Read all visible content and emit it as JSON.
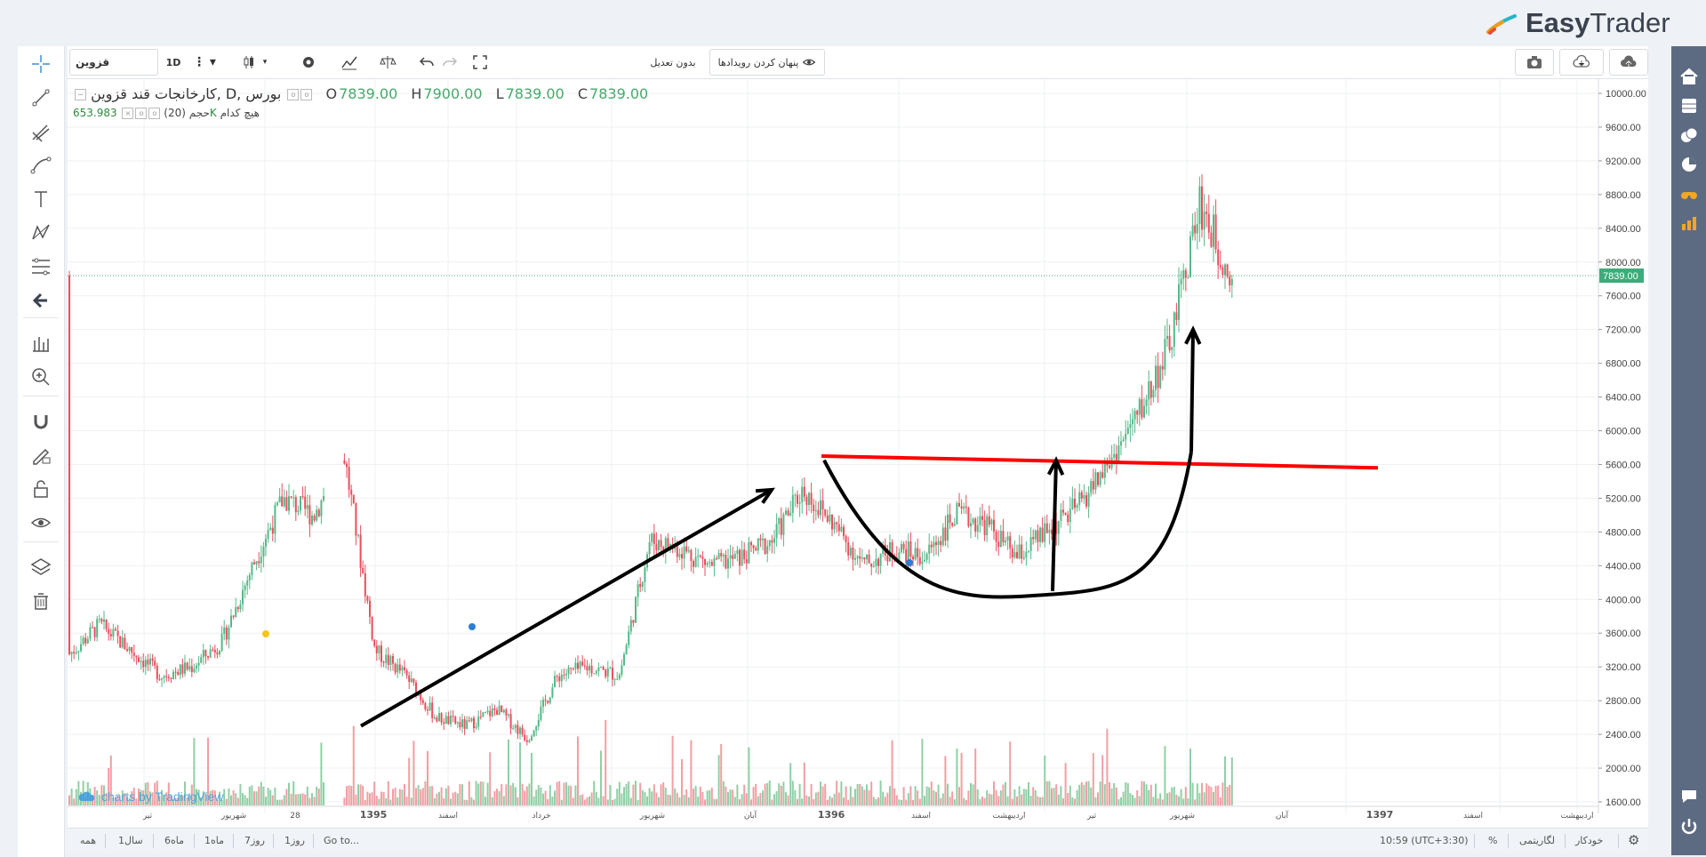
{
  "brand": {
    "name_bold": "Easy",
    "name_light": "Trader"
  },
  "toolbar": {
    "symbol": "قزوین",
    "interval": "1D",
    "adjust_label": "بدون تعدیل",
    "hide_events_label": "پنهان کردن رویدادها"
  },
  "legend": {
    "title": "کارخانجات قند قزوین, D, بورس",
    "open_label": "O",
    "open": "7839.00",
    "high_label": "H",
    "high": "7900.00",
    "low_label": "L",
    "low": "7839.00",
    "close_label": "C",
    "close": "7839.00",
    "volume_label": "حجم (20)",
    "volume_value": "653.983K",
    "volume_ma": "هیچ کدام"
  },
  "watermark": "charts by TradingView",
  "price_axis": {
    "labels": [
      "10000.00",
      "9600.00",
      "9200.00",
      "8800.00",
      "8400.00",
      "8000.00",
      "7600.00",
      "7200.00",
      "6800.00",
      "6400.00",
      "6000.00",
      "5600.00",
      "5200.00",
      "4800.00",
      "4400.00",
      "4000.00",
      "3600.00",
      "3200.00",
      "2800.00",
      "2400.00",
      "2000.00",
      "1600.00"
    ],
    "last_price": "7839.00"
  },
  "time_axis": {
    "labels": [
      "تیر",
      "شهریور",
      "28",
      "1395",
      "اسفند",
      "خرداد",
      "شهریور",
      "آبان",
      "1396",
      "اسفند",
      "اردیبهشت",
      "تیر",
      "شهریور",
      "آبان",
      "1397",
      "اسفند",
      "اردیبهشت"
    ]
  },
  "bottom_bar": {
    "ranges": [
      "همه",
      "1سال",
      "6ماه",
      "1ماه",
      "7روز",
      "1روز"
    ],
    "goto": "Go to...",
    "clock": "10:59 (UTC+3:30)",
    "percent": "%",
    "log": "لگاریتمی",
    "auto": "خودکار"
  },
  "chart_data": {
    "type": "candlestick",
    "symbol": "قزوین",
    "interval": "D",
    "ylim": [
      1400,
      10150
    ],
    "path_points": [
      [
        "1394-03",
        3350
      ],
      [
        "1394-04",
        3700
      ],
      [
        "1394-05",
        3400
      ],
      [
        "1394-06",
        3100
      ],
      [
        "1394-07",
        3200
      ],
      [
        "1394-08",
        3500
      ],
      [
        "1394-09",
        4400
      ],
      [
        "1394-10",
        5200
      ],
      [
        "1394-11",
        5000
      ],
      [
        "1394-12",
        5700
      ],
      [
        "1395-01",
        3400
      ],
      [
        "1395-02",
        3100
      ],
      [
        "1395-03",
        2600
      ],
      [
        "1395-04",
        2500
      ],
      [
        "1395-05",
        2700
      ],
      [
        "1395-06",
        2350
      ],
      [
        "1395-07",
        3100
      ],
      [
        "1395-08",
        3200
      ],
      [
        "1395-09",
        3100
      ],
      [
        "1395-10",
        4700
      ],
      [
        "1395-11",
        4600
      ],
      [
        "1395-12",
        4400
      ],
      [
        "1396-01",
        4500
      ],
      [
        "1396-02",
        4700
      ],
      [
        "1396-03",
        5300
      ],
      [
        "1396-04",
        4900
      ],
      [
        "1396-05",
        4400
      ],
      [
        "1396-06",
        4600
      ],
      [
        "1396-07",
        4500
      ],
      [
        "1396-08",
        5000
      ],
      [
        "1396-09",
        4900
      ],
      [
        "1396-10",
        4500
      ],
      [
        "1396-11",
        4800
      ],
      [
        "1396-12",
        5100
      ],
      [
        "1397-01",
        5600
      ],
      [
        "1397-02",
        6200
      ],
      [
        "1397-03",
        7000
      ],
      [
        "1397-04",
        8700
      ],
      [
        "1397-05",
        7839
      ]
    ],
    "volume_series_name": "حجم (20)",
    "last": {
      "open": 7839,
      "high": 7900,
      "low": 7839,
      "close": 7839,
      "volume": "653.983K"
    },
    "colors": {
      "up": "#53b987",
      "down": "#eb4d5c",
      "vol_up": "#8fd0a5",
      "vol_down": "#f29ea4"
    }
  },
  "drawings": {
    "line_color": "#000000",
    "resistance_color": "#ff0000",
    "arrow_up_trend": {
      "from": [
        2500,
        "1395-07"
      ],
      "to": [
        5300,
        "1396-02"
      ]
    },
    "resistance_level": {
      "y_start": 5700,
      "y_end": 5560
    },
    "cup": {
      "left": 5650,
      "bottom": 4060,
      "right": 5750
    },
    "measured_move_target": 7200
  }
}
